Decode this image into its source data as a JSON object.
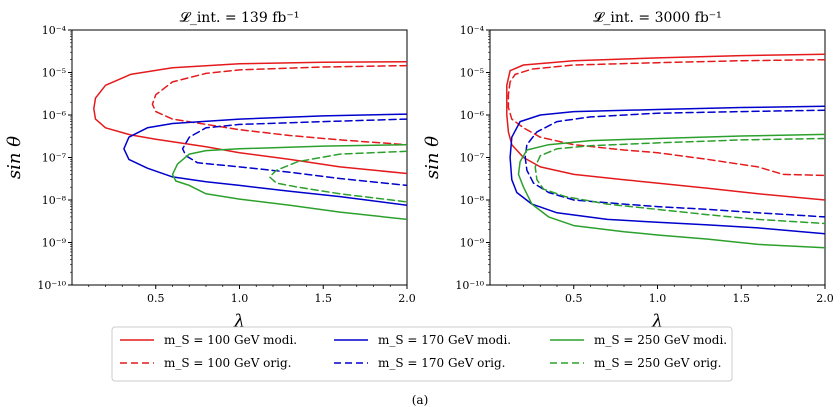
{
  "chart_data": [
    {
      "type": "line",
      "title": "𝓛_int. = 139 fb⁻¹",
      "xlabel": "λ",
      "ylabel": "sin θ",
      "x_scale": "linear",
      "y_scale": "log",
      "xlim": [
        0.0,
        2.0
      ],
      "ylim": [
        1e-10,
        0.0001
      ],
      "xticks": [
        0.5,
        1.0,
        1.5,
        2.0
      ],
      "xtick_labels": [
        "0.5",
        "1.0",
        "1.5",
        "2.0"
      ],
      "ytick_labels": [
        "10⁻¹⁰",
        "10⁻⁹",
        "10⁻⁸",
        "10⁻⁷",
        "10⁻⁶",
        "10⁻⁵",
        "10⁻⁴"
      ],
      "series": [
        {
          "name": "m_S = 100 GeV modi.",
          "color": "#e41a1c",
          "dash": "solid",
          "points": [
            [
              2.0,
              1.8e-05
            ],
            [
              1.5,
              1.75e-05
            ],
            [
              1.0,
              1.6e-05
            ],
            [
              0.6,
              1.3e-05
            ],
            [
              0.35,
              9e-06
            ],
            [
              0.2,
              5e-06
            ],
            [
              0.14,
              2.5e-06
            ],
            [
              0.13,
              1.4e-06
            ],
            [
              0.14,
              8e-07
            ],
            [
              0.2,
              5e-07
            ],
            [
              0.35,
              3.4e-07
            ],
            [
              0.5,
              2.7e-07
            ],
            [
              0.8,
              1.8e-07
            ],
            [
              1.0,
              1.3e-07
            ],
            [
              1.3,
              9e-08
            ],
            [
              1.6,
              6e-08
            ],
            [
              2.0,
              4.2e-08
            ]
          ]
        },
        {
          "name": "m_S = 100 GeV orig.",
          "color": "#e41a1c",
          "dash": "dashed",
          "points": [
            [
              2.0,
              1.45e-05
            ],
            [
              1.5,
              1.35e-05
            ],
            [
              1.0,
              1.15e-05
            ],
            [
              0.8,
              9.5e-06
            ],
            [
              0.6,
              6e-06
            ],
            [
              0.5,
              3e-06
            ],
            [
              0.48,
              1.8e-06
            ],
            [
              0.5,
              1.2e-06
            ],
            [
              0.6,
              8e-07
            ],
            [
              0.8,
              6e-07
            ],
            [
              1.0,
              4.5e-07
            ],
            [
              1.3,
              3.3e-07
            ],
            [
              1.6,
              2.6e-07
            ],
            [
              2.0,
              2e-07
            ]
          ]
        },
        {
          "name": "m_S = 170 GeV modi.",
          "color": "#0000cc",
          "dash": "solid",
          "points": [
            [
              2.0,
              1.05e-06
            ],
            [
              1.5,
              9.5e-07
            ],
            [
              1.0,
              8e-07
            ],
            [
              0.6,
              6.3e-07
            ],
            [
              0.45,
              5e-07
            ],
            [
              0.34,
              3e-07
            ],
            [
              0.31,
              1.6e-07
            ],
            [
              0.34,
              9e-08
            ],
            [
              0.45,
              5.6e-08
            ],
            [
              0.6,
              3.5e-08
            ],
            [
              0.8,
              2.7e-08
            ],
            [
              1.0,
              2.2e-08
            ],
            [
              1.3,
              1.6e-08
            ],
            [
              1.6,
              1.2e-08
            ],
            [
              2.0,
              7.5e-09
            ]
          ]
        },
        {
          "name": "m_S = 170 GeV orig.",
          "color": "#0000cc",
          "dash": "dashed",
          "points": [
            [
              2.0,
              8e-07
            ],
            [
              1.5,
              7e-07
            ],
            [
              1.0,
              6e-07
            ],
            [
              0.8,
              5e-07
            ],
            [
              0.7,
              3e-07
            ],
            [
              0.66,
              1.6e-07
            ],
            [
              0.68,
              1.1e-07
            ],
            [
              0.75,
              7.5e-08
            ],
            [
              1.0,
              6e-08
            ],
            [
              1.3,
              4.5e-08
            ],
            [
              1.6,
              3.2e-08
            ],
            [
              2.0,
              2.2e-08
            ]
          ]
        },
        {
          "name": "m_S = 250 GeV modi.",
          "color": "#2ca02c",
          "dash": "solid",
          "points": [
            [
              2.0,
              2e-07
            ],
            [
              1.5,
              1.85e-07
            ],
            [
              1.0,
              1.6e-07
            ],
            [
              0.8,
              1.45e-07
            ],
            [
              0.7,
              1.2e-07
            ],
            [
              0.63,
              7e-08
            ],
            [
              0.6,
              4e-08
            ],
            [
              0.62,
              2.8e-08
            ],
            [
              0.7,
              2.2e-08
            ],
            [
              0.8,
              1.4e-08
            ],
            [
              1.0,
              1.05e-08
            ],
            [
              1.3,
              7.5e-09
            ],
            [
              1.6,
              5.2e-09
            ],
            [
              2.0,
              3.5e-09
            ]
          ]
        },
        {
          "name": "m_S = 250 GeV orig.",
          "color": "#2ca02c",
          "dash": "dashed",
          "points": [
            [
              2.0,
              1.4e-07
            ],
            [
              1.6,
              1.2e-07
            ],
            [
              1.35,
              8e-08
            ],
            [
              1.22,
              5e-08
            ],
            [
              1.18,
              3.5e-08
            ],
            [
              1.22,
              2.5e-08
            ],
            [
              1.35,
              2e-08
            ],
            [
              1.6,
              1.4e-08
            ],
            [
              2.0,
              9e-09
            ]
          ]
        }
      ]
    },
    {
      "type": "line",
      "title": "𝓛_int. = 3000 fb⁻¹",
      "xlabel": "λ",
      "ylabel": "sin θ",
      "x_scale": "linear",
      "y_scale": "log",
      "xlim": [
        0.0,
        2.0
      ],
      "ylim": [
        1e-10,
        0.0001
      ],
      "xticks": [
        0.5,
        1.0,
        1.5,
        2.0
      ],
      "xtick_labels": [
        "0.5",
        "1.0",
        "1.5",
        "2.0"
      ],
      "ytick_labels": [
        "10⁻¹⁰",
        "10⁻⁹",
        "10⁻⁸",
        "10⁻⁷",
        "10⁻⁶",
        "10⁻⁵",
        "10⁻⁴"
      ],
      "series": [
        {
          "name": "m_S = 100 GeV modi.",
          "color": "#e41a1c",
          "dash": "solid",
          "points": [
            [
              2.0,
              2.7e-05
            ],
            [
              1.5,
              2.5e-05
            ],
            [
              1.0,
              2.2e-05
            ],
            [
              0.5,
              1.9e-05
            ],
            [
              0.2,
              1.5e-05
            ],
            [
              0.12,
              1.1e-05
            ],
            [
              0.1,
              5e-06
            ],
            [
              0.1,
              1e-06
            ],
            [
              0.11,
              4e-07
            ],
            [
              0.13,
              2e-07
            ],
            [
              0.2,
              1e-07
            ],
            [
              0.3,
              6e-08
            ],
            [
              0.5,
              4e-08
            ],
            [
              0.8,
              3e-08
            ],
            [
              1.0,
              2.5e-08
            ],
            [
              1.3,
              1.9e-08
            ],
            [
              1.6,
              1.4e-08
            ],
            [
              2.0,
              1e-08
            ]
          ]
        },
        {
          "name": "m_S = 100 GeV orig.",
          "color": "#e41a1c",
          "dash": "dashed",
          "points": [
            [
              2.0,
              2e-05
            ],
            [
              1.5,
              1.9e-05
            ],
            [
              1.0,
              1.7e-05
            ],
            [
              0.5,
              1.5e-05
            ],
            [
              0.25,
              1.2e-05
            ],
            [
              0.15,
              9e-06
            ],
            [
              0.12,
              6e-06
            ],
            [
              0.11,
              3e-06
            ],
            [
              0.11,
              1.5e-06
            ],
            [
              0.13,
              8e-07
            ],
            [
              0.2,
              5e-07
            ],
            [
              0.3,
              3e-07
            ],
            [
              0.5,
              2e-07
            ],
            [
              0.8,
              1.5e-07
            ],
            [
              1.0,
              1.3e-07
            ],
            [
              1.3,
              9e-08
            ],
            [
              1.6,
              6e-08
            ],
            [
              1.75,
              4e-08
            ],
            [
              2.0,
              3.8e-08
            ]
          ]
        },
        {
          "name": "m_S = 170 GeV modi.",
          "color": "#0000cc",
          "dash": "solid",
          "points": [
            [
              2.0,
              1.6e-06
            ],
            [
              1.5,
              1.5e-06
            ],
            [
              1.0,
              1.35e-06
            ],
            [
              0.5,
              1.2e-06
            ],
            [
              0.3,
              1e-06
            ],
            [
              0.18,
              7e-07
            ],
            [
              0.13,
              3e-07
            ],
            [
              0.12,
              1e-07
            ],
            [
              0.13,
              3e-08
            ],
            [
              0.16,
              1.5e-08
            ],
            [
              0.25,
              8e-09
            ],
            [
              0.4,
              5e-09
            ],
            [
              0.7,
              3.5e-09
            ],
            [
              1.0,
              3e-09
            ],
            [
              1.3,
              2.6e-09
            ],
            [
              1.6,
              2.2e-09
            ],
            [
              2.0,
              1.6e-09
            ]
          ]
        },
        {
          "name": "m_S = 170 GeV orig.",
          "color": "#0000cc",
          "dash": "dashed",
          "points": [
            [
              2.0,
              1.3e-06
            ],
            [
              1.5,
              1.2e-06
            ],
            [
              1.0,
              1.1e-06
            ],
            [
              0.6,
              9e-07
            ],
            [
              0.4,
              7e-07
            ],
            [
              0.28,
              4e-07
            ],
            [
              0.22,
              2e-07
            ],
            [
              0.21,
              1e-07
            ],
            [
              0.22,
              5e-08
            ],
            [
              0.26,
              2.5e-08
            ],
            [
              0.35,
              1.5e-08
            ],
            [
              0.5,
              1e-08
            ],
            [
              0.8,
              8e-09
            ],
            [
              1.0,
              7e-09
            ],
            [
              1.3,
              6e-09
            ],
            [
              1.6,
              5e-09
            ],
            [
              2.0,
              4e-09
            ]
          ]
        },
        {
          "name": "m_S = 250 GeV modi.",
          "color": "#2ca02c",
          "dash": "solid",
          "points": [
            [
              2.0,
              3.5e-07
            ],
            [
              1.5,
              3.2e-07
            ],
            [
              1.0,
              2.8e-07
            ],
            [
              0.6,
              2.5e-07
            ],
            [
              0.35,
              2e-07
            ],
            [
              0.22,
              1.5e-07
            ],
            [
              0.18,
              8e-08
            ],
            [
              0.17,
              4e-08
            ],
            [
              0.2,
              2e-08
            ],
            [
              0.25,
              8e-09
            ],
            [
              0.35,
              4e-09
            ],
            [
              0.5,
              2.5e-09
            ],
            [
              0.8,
              1.8e-09
            ],
            [
              1.0,
              1.5e-09
            ],
            [
              1.3,
              1.2e-09
            ],
            [
              1.6,
              9e-10
            ],
            [
              2.0,
              7.5e-10
            ]
          ]
        },
        {
          "name": "m_S = 250 GeV orig.",
          "color": "#2ca02c",
          "dash": "dashed",
          "points": [
            [
              2.0,
              2.8e-07
            ],
            [
              1.5,
              2.6e-07
            ],
            [
              1.0,
              2.2e-07
            ],
            [
              0.6,
              1.9e-07
            ],
            [
              0.4,
              1.6e-07
            ],
            [
              0.3,
              1.1e-07
            ],
            [
              0.27,
              6e-08
            ],
            [
              0.28,
              3e-08
            ],
            [
              0.32,
              1.8e-08
            ],
            [
              0.45,
              1.2e-08
            ],
            [
              0.7,
              8e-09
            ],
            [
              1.0,
              6e-09
            ],
            [
              1.3,
              4.5e-09
            ],
            [
              1.6,
              3.5e-09
            ],
            [
              2.0,
              2.8e-09
            ]
          ]
        }
      ]
    }
  ],
  "legend": {
    "entries": [
      {
        "label": "m_S = 100 GeV modi.",
        "color": "#e41a1c",
        "dash": "solid"
      },
      {
        "label": "m_S = 170 GeV modi.",
        "color": "#0000cc",
        "dash": "solid"
      },
      {
        "label": "m_S = 250 GeV modi.",
        "color": "#2ca02c",
        "dash": "solid"
      },
      {
        "label": "m_S = 100 GeV orig.",
        "color": "#e41a1c",
        "dash": "dashed"
      },
      {
        "label": "m_S = 170 GeV orig.",
        "color": "#0000cc",
        "dash": "dashed"
      },
      {
        "label": "m_S = 250 GeV orig.",
        "color": "#2ca02c",
        "dash": "dashed"
      }
    ]
  },
  "caption": "(a)"
}
